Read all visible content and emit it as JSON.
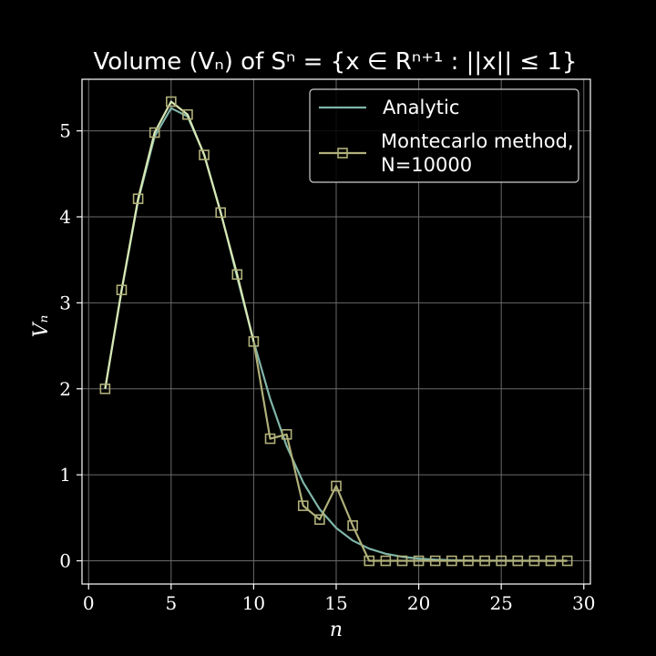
{
  "chart_data": {
    "type": "line",
    "title": "Volume (Vₙ) of Sⁿ = {x ∈ Rⁿ⁺¹ : ||x|| ≤ 1}",
    "xlabel": "n",
    "ylabel": "Vₙ",
    "xlim": [
      -0.4,
      30.4
    ],
    "ylim": [
      -0.27,
      5.6
    ],
    "xticks": [
      0,
      5,
      10,
      15,
      20,
      25,
      30
    ],
    "yticks": [
      0,
      1,
      2,
      3,
      4,
      5
    ],
    "grid": true,
    "legend_position": "top-right",
    "colors": {
      "background": "#000000",
      "analytic": "#7fb5a8",
      "montecarlo": "#b0b07a",
      "montecarlo_early": "#d8e8b4",
      "grid": "#6a6a6a"
    },
    "series": [
      {
        "name": "Analytic",
        "x": [
          1,
          2,
          3,
          4,
          5,
          6,
          7,
          8,
          9,
          10,
          11,
          12,
          13,
          14,
          15,
          16,
          17,
          18,
          19,
          20,
          21,
          22,
          23,
          24,
          25,
          26,
          27,
          28,
          29
        ],
        "values": [
          2.0,
          3.1416,
          4.1888,
          4.9348,
          5.2638,
          5.1677,
          4.7248,
          4.0587,
          3.2985,
          2.5502,
          1.8841,
          1.3353,
          0.9106,
          0.5993,
          0.3814,
          0.2353,
          0.141,
          0.0822,
          0.0466,
          0.0258,
          0.0139,
          0.0073,
          0.0038,
          0.0019,
          0.0009,
          0.0004,
          0.0002,
          0.0001,
          0.0
        ]
      },
      {
        "name": "Montecarlo method,\nN=10000",
        "x": [
          1,
          2,
          3,
          4,
          5,
          6,
          7,
          8,
          9,
          10,
          11,
          12,
          13,
          14,
          15,
          16,
          17,
          18,
          19,
          20,
          21,
          22,
          23,
          24,
          25,
          26,
          27,
          28,
          29
        ],
        "values": [
          2.0,
          3.15,
          4.21,
          4.98,
          5.34,
          5.19,
          4.72,
          4.05,
          3.33,
          2.55,
          1.42,
          1.47,
          0.64,
          0.48,
          0.87,
          0.41,
          0.0,
          0.0,
          0.0,
          0.0,
          0.0,
          0.0,
          0.0,
          0.0,
          0.0,
          0.0,
          0.0,
          0.0,
          0.0
        ]
      }
    ]
  }
}
